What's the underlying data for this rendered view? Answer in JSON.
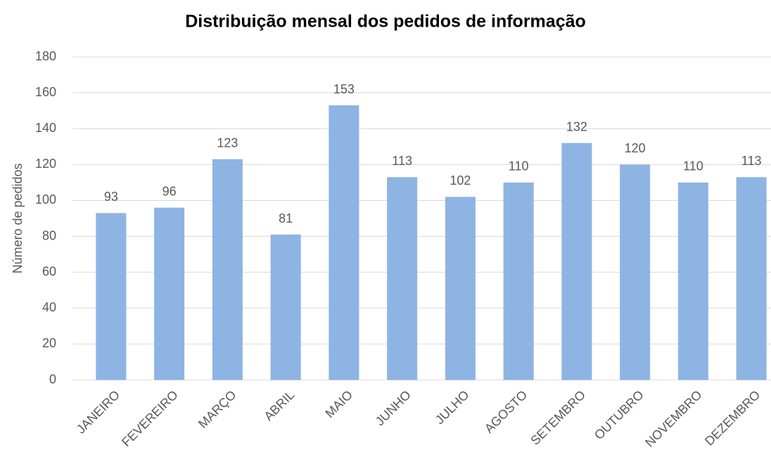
{
  "chart_data": {
    "type": "bar",
    "title": "Distribuição mensal dos pedidos de informação",
    "y_label": "Número de pedidos",
    "categories": [
      "JANEIRO",
      "FEVEREIRO",
      "MARÇO",
      "ABRIL",
      "MAIO",
      "JUNHO",
      "JULHO",
      "AGOSTO",
      "SETEMBRO",
      "OUTUBRO",
      "NOVEMBRO",
      "DEZEMBRO"
    ],
    "values": [
      93,
      96,
      123,
      81,
      153,
      113,
      102,
      110,
      132,
      120,
      110,
      113
    ],
    "color": "#8eb4e3",
    "ylim": [
      0,
      180
    ],
    "yticks": [
      0,
      20,
      40,
      60,
      80,
      100,
      120,
      140,
      160,
      180
    ],
    "grid": true
  }
}
